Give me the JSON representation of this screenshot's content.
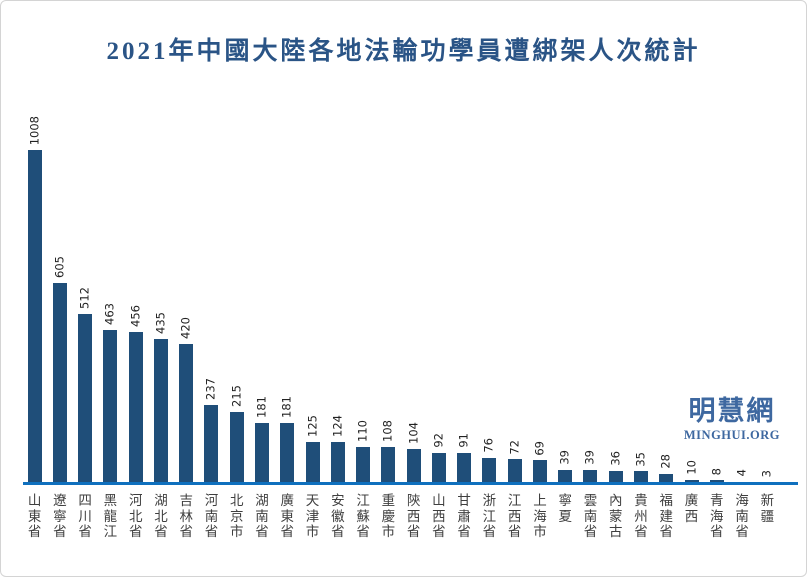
{
  "page": {
    "background": "#ffffff",
    "border_color": "#d4d4d4"
  },
  "title": "2021年中國大陸各地法輪功學員遭綁架人次統計",
  "watermark": {
    "name": "明慧網",
    "domain": "MINGHUI.ORG"
  },
  "colors": {
    "bar": "#1F4E79",
    "axis_line": "#0F70BE",
    "title": "#2A5486",
    "value_label": "#222222",
    "category_label": "#3F3F3F",
    "watermark": "#3E68A0"
  },
  "chart_data": {
    "type": "bar",
    "title": "2021年中國大陸各地法輪功學員遭綁架人次統計",
    "categories": [
      "山東省",
      "遼寧省",
      "四川省",
      "黑龍江",
      "河北省",
      "湖北省",
      "吉林省",
      "河南省",
      "北京市",
      "湖南省",
      "廣東省",
      "天津市",
      "安徽省",
      "江蘇省",
      "重慶市",
      "陝西省",
      "山西省",
      "甘肅省",
      "浙江省",
      "江西省",
      "上海市",
      "寧夏",
      "雲南省",
      "內蒙古",
      "貴州省",
      "福建省",
      "廣西",
      "青海省",
      "海南省",
      "新疆"
    ],
    "values": [
      1008,
      605,
      512,
      463,
      456,
      435,
      420,
      237,
      215,
      181,
      181,
      125,
      124,
      110,
      108,
      104,
      92,
      91,
      76,
      72,
      69,
      39,
      39,
      36,
      35,
      28,
      10,
      8,
      4,
      3
    ],
    "xlabel": "",
    "ylabel": "",
    "ylim": [
      0,
      1050
    ],
    "grid": false,
    "legend": false,
    "value_labels": "rotated-90-above-bars",
    "category_labels": "vertical-stacked",
    "bar_color": "#1F4E79"
  }
}
